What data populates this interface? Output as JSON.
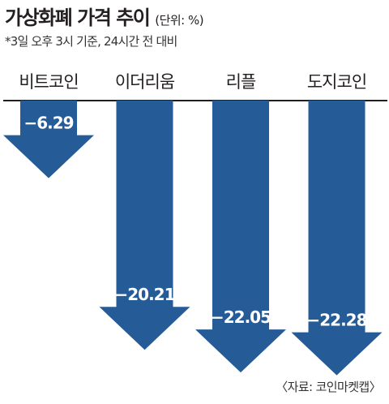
{
  "header": {
    "title": "가상화폐 가격 추이",
    "unit": "(단위: %)",
    "subtitle": "*3일 오후 3시 기준, 24시간 전 대비"
  },
  "footer": {
    "source": "〈자료: 코인마켓캡〉"
  },
  "colors": {
    "bar": "#255c98",
    "baseline": "#231f20",
    "label": "#ffffff"
  },
  "chart_data": {
    "type": "bar",
    "orientation": "vertical",
    "categories": [
      "비트코인",
      "이더리움",
      "리플",
      "도지코인"
    ],
    "values": [
      -6.29,
      -20.21,
      -22.05,
      -22.28
    ],
    "value_labels": [
      "−6.29",
      "−20.21",
      "−22.05",
      "−22.28"
    ],
    "title": "가상화폐 가격 추이",
    "ylabel": "",
    "xlabel": "",
    "ylim": [
      -25,
      0
    ],
    "grid": false,
    "legend": "none",
    "bar_style": "downward-arrow"
  }
}
